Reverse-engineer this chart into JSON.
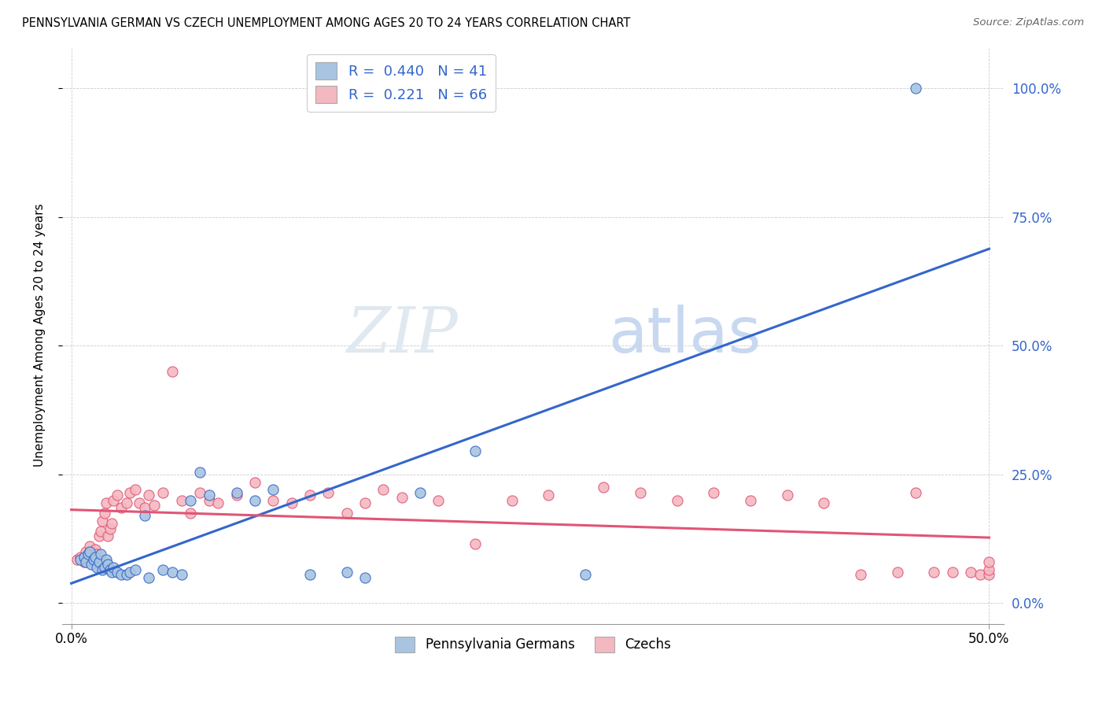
{
  "title": "PENNSYLVANIA GERMAN VS CZECH UNEMPLOYMENT AMONG AGES 20 TO 24 YEARS CORRELATION CHART",
  "source": "Source: ZipAtlas.com",
  "ylabel": "Unemployment Among Ages 20 to 24 years",
  "right_yticks": [
    "0.0%",
    "25.0%",
    "50.0%",
    "75.0%",
    "100.0%"
  ],
  "right_ytick_vals": [
    0.0,
    0.25,
    0.5,
    0.75,
    1.0
  ],
  "xlim": [
    0.0,
    0.5
  ],
  "ylim": [
    -0.04,
    1.08
  ],
  "german_R": 0.44,
  "german_N": 41,
  "czech_R": 0.221,
  "czech_N": 66,
  "german_color": "#a8c4e0",
  "czech_color": "#f4b8c1",
  "german_line_color": "#3366cc",
  "czech_line_color": "#e05575",
  "legend_label_german": "Pennsylvania Germans",
  "legend_label_czech": "Czechs",
  "watermark_zip": "ZIP",
  "watermark_atlas": "atlas",
  "german_x": [
    0.005,
    0.007,
    0.008,
    0.009,
    0.01,
    0.011,
    0.012,
    0.013,
    0.014,
    0.015,
    0.016,
    0.017,
    0.018,
    0.019,
    0.02,
    0.021,
    0.022,
    0.023,
    0.025,
    0.027,
    0.03,
    0.032,
    0.035,
    0.04,
    0.042,
    0.05,
    0.055,
    0.06,
    0.065,
    0.07,
    0.075,
    0.09,
    0.1,
    0.11,
    0.13,
    0.15,
    0.16,
    0.19,
    0.22,
    0.28,
    0.46
  ],
  "german_y": [
    0.085,
    0.09,
    0.08,
    0.095,
    0.1,
    0.075,
    0.085,
    0.09,
    0.07,
    0.08,
    0.095,
    0.065,
    0.07,
    0.085,
    0.075,
    0.065,
    0.06,
    0.07,
    0.06,
    0.055,
    0.055,
    0.06,
    0.065,
    0.17,
    0.05,
    0.065,
    0.06,
    0.055,
    0.2,
    0.255,
    0.21,
    0.215,
    0.2,
    0.22,
    0.055,
    0.06,
    0.05,
    0.215,
    0.295,
    0.055,
    1.0
  ],
  "czech_x": [
    0.003,
    0.005,
    0.007,
    0.008,
    0.009,
    0.01,
    0.011,
    0.012,
    0.013,
    0.014,
    0.015,
    0.016,
    0.017,
    0.018,
    0.019,
    0.02,
    0.021,
    0.022,
    0.023,
    0.025,
    0.027,
    0.03,
    0.032,
    0.035,
    0.037,
    0.04,
    0.042,
    0.045,
    0.05,
    0.055,
    0.06,
    0.065,
    0.07,
    0.075,
    0.08,
    0.09,
    0.1,
    0.11,
    0.12,
    0.13,
    0.14,
    0.15,
    0.16,
    0.17,
    0.18,
    0.2,
    0.22,
    0.24,
    0.26,
    0.29,
    0.31,
    0.33,
    0.35,
    0.37,
    0.39,
    0.41,
    0.43,
    0.45,
    0.46,
    0.47,
    0.48,
    0.49,
    0.495,
    0.5,
    0.5,
    0.5
  ],
  "czech_y": [
    0.085,
    0.09,
    0.08,
    0.1,
    0.095,
    0.11,
    0.095,
    0.09,
    0.105,
    0.095,
    0.13,
    0.14,
    0.16,
    0.175,
    0.195,
    0.13,
    0.145,
    0.155,
    0.2,
    0.21,
    0.185,
    0.195,
    0.215,
    0.22,
    0.195,
    0.185,
    0.21,
    0.19,
    0.215,
    0.45,
    0.2,
    0.175,
    0.215,
    0.2,
    0.195,
    0.21,
    0.235,
    0.2,
    0.195,
    0.21,
    0.215,
    0.175,
    0.195,
    0.22,
    0.205,
    0.2,
    0.115,
    0.2,
    0.21,
    0.225,
    0.215,
    0.2,
    0.215,
    0.2,
    0.21,
    0.195,
    0.055,
    0.06,
    0.215,
    0.06,
    0.06,
    0.06,
    0.055,
    0.055,
    0.065,
    0.08
  ]
}
